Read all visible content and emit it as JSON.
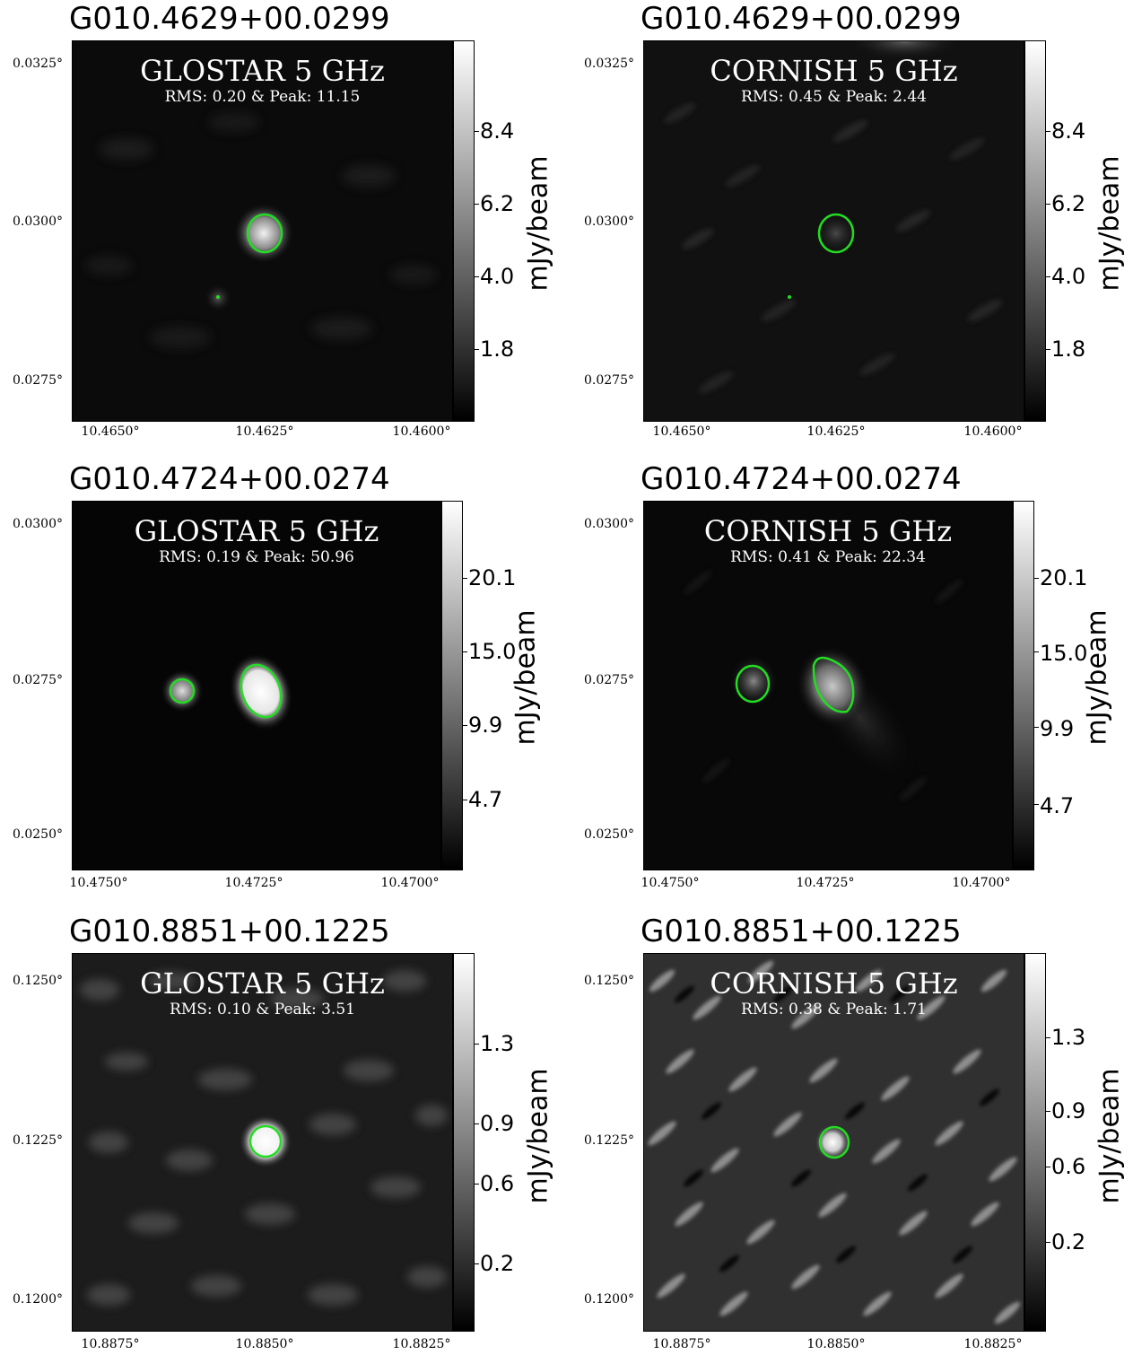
{
  "panels": [
    {
      "title": "G010.4629+00.0299",
      "survey": "GLOSTAR 5 GHz",
      "stats": "RMS: 0.20 & Peak: 11.15",
      "yticks": [
        "0.0325°",
        "0.0300°",
        "0.0275°"
      ],
      "xticks": [
        "10.4650°",
        "10.4625°",
        "10.4600°"
      ],
      "cbticks": [
        "8.4",
        "6.2",
        "4.0",
        "1.8"
      ],
      "cblabel": "mJy/beam"
    },
    {
      "title": "G010.4629+00.0299",
      "survey": "CORNISH 5 GHz",
      "stats": "RMS: 0.45 & Peak: 2.44",
      "yticks": [
        "0.0325°",
        "0.0300°",
        "0.0275°"
      ],
      "xticks": [
        "10.4650°",
        "10.4625°",
        "10.4600°"
      ],
      "cbticks": [
        "8.4",
        "6.2",
        "4.0",
        "1.8"
      ],
      "cblabel": "mJy/beam"
    },
    {
      "title": "G010.4724+00.0274",
      "survey": "GLOSTAR 5 GHz",
      "stats": "RMS: 0.19 & Peak: 50.96",
      "yticks": [
        "0.0300°",
        "0.0275°",
        "0.0250°"
      ],
      "xticks": [
        "10.4750°",
        "10.4725°",
        "10.4700°"
      ],
      "cbticks": [
        "20.1",
        "15.0",
        "9.9",
        "4.7"
      ],
      "cblabel": "mJy/beam"
    },
    {
      "title": "G010.4724+00.0274",
      "survey": "CORNISH 5 GHz",
      "stats": "RMS: 0.41 & Peak: 22.34",
      "yticks": [
        "0.0300°",
        "0.0275°",
        "0.0250°"
      ],
      "xticks": [
        "10.4750°",
        "10.4725°",
        "10.4700°"
      ],
      "cbticks": [
        "20.1",
        "15.0",
        "9.9",
        "4.7"
      ],
      "cblabel": "mJy/beam"
    },
    {
      "title": "G010.8851+00.1225",
      "survey": "GLOSTAR 5 GHz",
      "stats": "RMS: 0.10 & Peak: 3.51",
      "yticks": [
        "0.1250°",
        "0.1225°",
        "0.1200°"
      ],
      "xticks": [
        "10.8875°",
        "10.8850°",
        "10.8825°"
      ],
      "cbticks": [
        "1.3",
        "0.9",
        "0.6",
        "0.2"
      ],
      "cblabel": "mJy/beam"
    },
    {
      "title": "G010.8851+00.1225",
      "survey": "CORNISH 5 GHz",
      "stats": "RMS: 0.38 & Peak: 1.71",
      "yticks": [
        "0.1250°",
        "0.1225°",
        "0.1200°"
      ],
      "xticks": [
        "10.8875°",
        "10.8850°",
        "10.8825°"
      ],
      "cbticks": [
        "1.3",
        "0.9",
        "0.6",
        "0.2"
      ],
      "cblabel": "mJy/beam"
    }
  ],
  "colors": {
    "contour": "#22dd22",
    "background": "#ffffff",
    "text": "#000000"
  }
}
